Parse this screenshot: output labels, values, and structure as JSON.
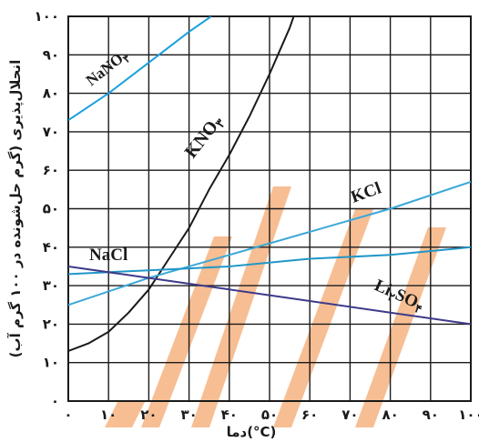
{
  "chart_data": {
    "type": "line",
    "xlabel": "دما(°C)",
    "ylabel": "انحلال‌پذیری (گرم حل‌شونده در ۱۰۰ گرم آب)",
    "xlim": [
      0,
      100
    ],
    "ylim": [
      0,
      100
    ],
    "x_ticks": [
      "۰",
      "۱۰",
      "۲۰",
      "۳۰",
      "۴۰",
      "۵۰",
      "۶۰",
      "۷۰",
      "۸۰",
      "۹۰",
      "۱۰۰"
    ],
    "y_ticks": [
      "۰",
      "۱۰",
      "۲۰",
      "۳۰",
      "۴۰",
      "۵۰",
      "۶۰",
      "۷۰",
      "۸۰",
      "۹۰",
      "۱۰۰"
    ],
    "grid": true,
    "series": [
      {
        "name": "NaNO۳",
        "label_main": "NaNO",
        "label_sub": "۳",
        "color": "#1aa0dc",
        "x": [
          0,
          10,
          20,
          30,
          35.5
        ],
        "y": [
          73,
          80,
          88,
          96,
          100
        ]
      },
      {
        "name": "KNO۳",
        "label_main": "KNO",
        "label_sub": "۳",
        "color": "#1a1a1a",
        "x": [
          0,
          5,
          10,
          15,
          20,
          25,
          30,
          35,
          40,
          45,
          50,
          55,
          56
        ],
        "y": [
          13,
          15,
          18,
          23,
          29,
          37,
          45,
          55,
          64,
          74,
          85,
          97,
          100
        ]
      },
      {
        "name": "KCl",
        "label_main": "KCl",
        "label_sub": "",
        "color": "#3aa8d8",
        "x": [
          0,
          20,
          40,
          60,
          80,
          100
        ],
        "y": [
          25,
          32,
          38,
          44,
          50,
          57
        ]
      },
      {
        "name": "NaCl",
        "label_main": "NaCl",
        "label_sub": "",
        "color": "#2196c8",
        "x": [
          0,
          20,
          40,
          60,
          80,
          100
        ],
        "y": [
          33,
          34,
          35,
          37,
          38,
          40
        ]
      },
      {
        "name": "Li۲SO۴",
        "label_main": "Li",
        "label_sub": "۲",
        "label_main2": "SO",
        "label_sub2": "۴",
        "color": "#3d3a8a",
        "x": [
          0,
          20,
          40,
          60,
          80,
          100
        ],
        "y": [
          35,
          32,
          29,
          26,
          23,
          20
        ]
      }
    ],
    "watermark_color": "#f28a3c"
  }
}
